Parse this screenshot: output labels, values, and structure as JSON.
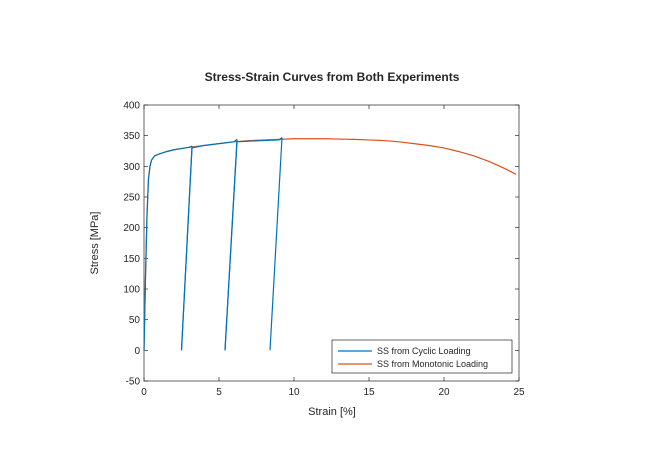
{
  "chart_data": {
    "type": "line",
    "title": "Stress-Strain Curves from Both Experiments",
    "xlabel": "Strain [%]",
    "ylabel": "Stress [MPa]",
    "xlim": [
      0,
      25
    ],
    "ylim": [
      -50,
      400
    ],
    "xticks": [
      0,
      5,
      10,
      15,
      20,
      25
    ],
    "yticks": [
      -50,
      0,
      50,
      100,
      150,
      200,
      250,
      300,
      350,
      400
    ],
    "xtick_labels": [
      "0",
      "5",
      "10",
      "15",
      "20",
      "25"
    ],
    "ytick_labels": [
      "-50",
      "0",
      "50",
      "100",
      "150",
      "200",
      "250",
      "300",
      "350",
      "400"
    ],
    "grid": false,
    "legend_position": "bottom-right",
    "series": [
      {
        "name": "SS from Cyclic Loading",
        "color": "#0072bd",
        "segments": [
          {
            "x": [
              0.0,
              0.1,
              0.2,
              0.3,
              0.4,
              0.5,
              0.7,
              1.0,
              1.5,
              2.0,
              2.5,
              3.0,
              3.2
            ],
            "y": [
              0,
              120,
              220,
              280,
              300,
              310,
              317,
              320,
              324,
              327,
              329,
              331,
              333
            ]
          },
          {
            "x": [
              3.2,
              2.5
            ],
            "y": [
              333,
              0
            ]
          },
          {
            "x": [
              2.5,
              3.2,
              4.0,
              5.0,
              6.0,
              6.2
            ],
            "y": [
              0,
              330,
              334,
              337,
              340,
              344
            ]
          },
          {
            "x": [
              6.2,
              5.4
            ],
            "y": [
              344,
              0
            ]
          },
          {
            "x": [
              5.4,
              6.2,
              7.0,
              8.0,
              9.0,
              9.2
            ],
            "y": [
              0,
              340,
              341,
              342,
              343,
              347
            ]
          },
          {
            "x": [
              9.2,
              8.4
            ],
            "y": [
              347,
              0
            ]
          }
        ]
      },
      {
        "name": "SS from Monotonic Loading",
        "color": "#d95319",
        "segments": [
          {
            "x": [
              0.0,
              0.1,
              0.2,
              0.3,
              0.4,
              0.5,
              0.7,
              1.0,
              1.5,
              2.0,
              3.0,
              4.0,
              5.0,
              6.0,
              7.0,
              8.0,
              9.0,
              10.0,
              11.0,
              12.0,
              13.0,
              14.0,
              15.0,
              16.0,
              17.0,
              18.0,
              19.0,
              20.0,
              21.0,
              22.0,
              23.0,
              24.0,
              24.8
            ],
            "y": [
              0,
              120,
              220,
              280,
              300,
              310,
              317,
              320,
              324,
              327,
              331,
              334,
              337,
              340,
              342,
              343,
              344,
              345,
              345,
              345,
              344.5,
              344,
              343,
              342,
              340,
              337,
              334,
              330,
              324,
              317,
              308,
              297,
              287
            ]
          }
        ]
      }
    ]
  }
}
